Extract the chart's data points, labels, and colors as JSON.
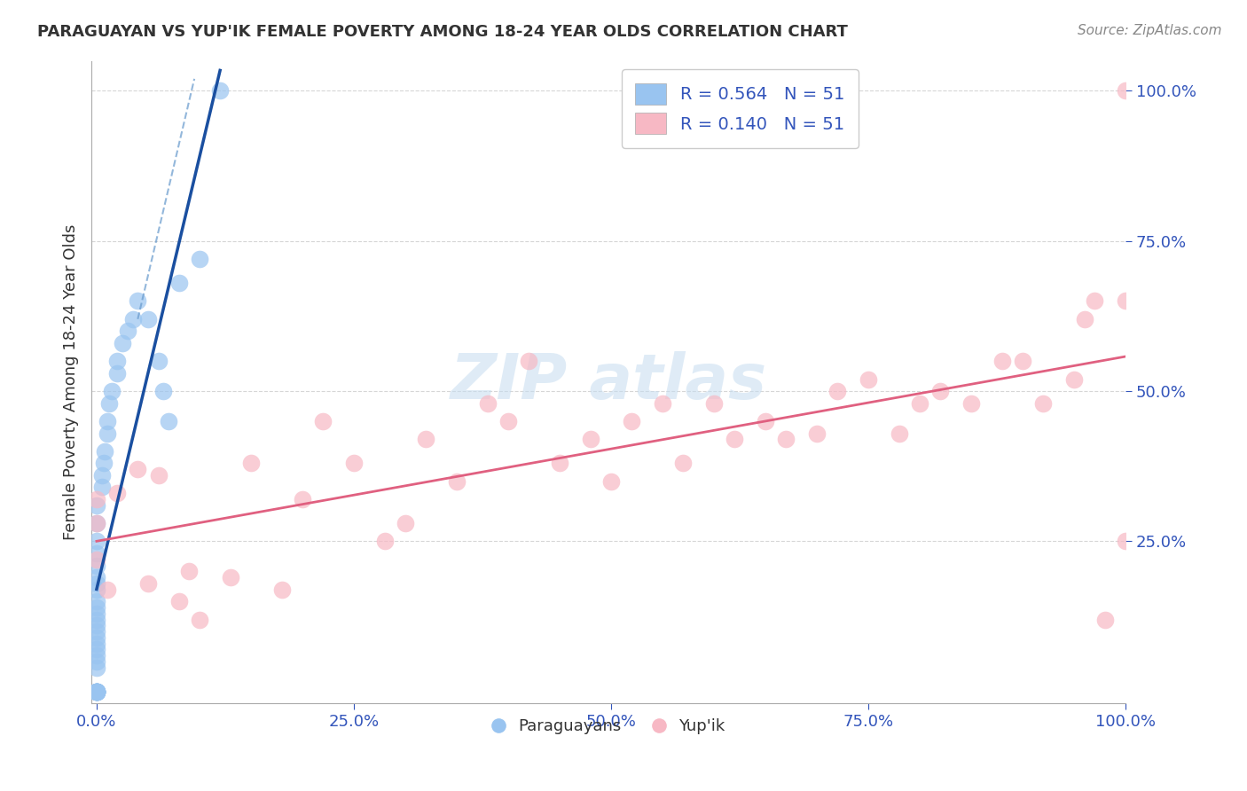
{
  "title": "PARAGUAYAN VS YUP'IK FEMALE POVERTY AMONG 18-24 YEAR OLDS CORRELATION CHART",
  "source": "Source: ZipAtlas.com",
  "ylabel": "Female Poverty Among 18-24 Year Olds",
  "xlim": [
    -0.005,
    1.0
  ],
  "ylim": [
    -0.02,
    1.05
  ],
  "paraguayan_R": 0.564,
  "paraguayan_N": 51,
  "yupik_R": 0.14,
  "yupik_N": 51,
  "blue_scatter_color": "#99c4f0",
  "pink_scatter_color": "#f7b8c4",
  "blue_line_color": "#1a4fa0",
  "pink_line_color": "#e06080",
  "blue_dash_color": "#6699cc",
  "legend_label_paraguayan": "Paraguayans",
  "legend_label_yupik": "Yup'ik",
  "paraguayan_x": [
    0.0,
    0.0,
    0.0,
    0.0,
    0.0,
    0.0,
    0.0,
    0.0,
    0.0,
    0.0,
    0.0,
    0.0,
    0.0,
    0.0,
    0.0,
    0.0,
    0.0,
    0.0,
    0.0,
    0.0,
    0.0,
    0.0,
    0.0,
    0.0,
    0.0,
    0.0,
    0.0,
    0.0,
    0.0,
    0.0,
    0.005,
    0.005,
    0.007,
    0.008,
    0.01,
    0.01,
    0.012,
    0.015,
    0.02,
    0.02,
    0.025,
    0.03,
    0.035,
    0.04,
    0.05,
    0.06,
    0.065,
    0.07,
    0.08,
    0.1,
    0.12
  ],
  "paraguayan_y": [
    0.0,
    0.0,
    0.0,
    0.0,
    0.0,
    0.0,
    0.0,
    0.0,
    0.0,
    0.0,
    0.04,
    0.05,
    0.06,
    0.07,
    0.08,
    0.09,
    0.1,
    0.11,
    0.12,
    0.13,
    0.14,
    0.15,
    0.17,
    0.18,
    0.19,
    0.21,
    0.23,
    0.25,
    0.28,
    0.31,
    0.34,
    0.36,
    0.38,
    0.4,
    0.43,
    0.45,
    0.48,
    0.5,
    0.53,
    0.55,
    0.58,
    0.6,
    0.62,
    0.65,
    0.62,
    0.55,
    0.5,
    0.45,
    0.68,
    0.72,
    1.0
  ],
  "yupik_x": [
    0.0,
    0.0,
    0.0,
    0.01,
    0.02,
    0.04,
    0.05,
    0.06,
    0.08,
    0.09,
    0.1,
    0.13,
    0.15,
    0.18,
    0.2,
    0.22,
    0.25,
    0.28,
    0.3,
    0.32,
    0.35,
    0.38,
    0.4,
    0.42,
    0.45,
    0.48,
    0.5,
    0.52,
    0.55,
    0.57,
    0.6,
    0.62,
    0.65,
    0.67,
    0.7,
    0.72,
    0.75,
    0.78,
    0.8,
    0.82,
    0.85,
    0.88,
    0.9,
    0.92,
    0.95,
    0.96,
    0.97,
    0.98,
    1.0,
    1.0,
    1.0
  ],
  "yupik_y": [
    0.32,
    0.28,
    0.22,
    0.17,
    0.33,
    0.37,
    0.18,
    0.36,
    0.15,
    0.2,
    0.12,
    0.19,
    0.38,
    0.17,
    0.32,
    0.45,
    0.38,
    0.25,
    0.28,
    0.42,
    0.35,
    0.48,
    0.45,
    0.55,
    0.38,
    0.42,
    0.35,
    0.45,
    0.48,
    0.38,
    0.48,
    0.42,
    0.45,
    0.42,
    0.43,
    0.5,
    0.52,
    0.43,
    0.48,
    0.5,
    0.48,
    0.55,
    0.55,
    0.48,
    0.52,
    0.62,
    0.65,
    0.12,
    0.65,
    0.25,
    1.0
  ]
}
